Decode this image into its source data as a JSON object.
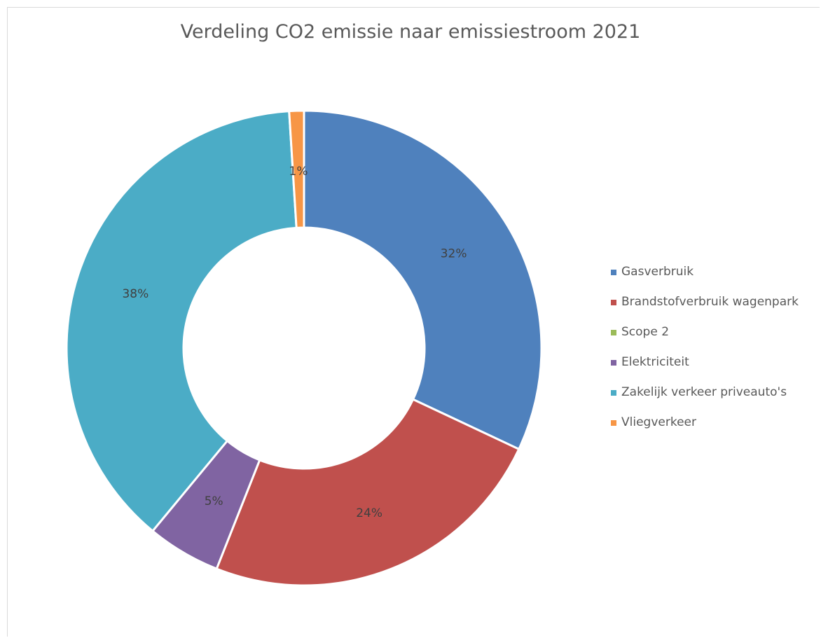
{
  "chart_data": {
    "type": "pie",
    "variant": "donut",
    "title": "Verdeling CO2 emissie naar emissiestroom 2021",
    "legend_position": "right",
    "series": [
      {
        "name": "Gasverbruik",
        "value": 32,
        "label": "32%",
        "color": "#4F81BD"
      },
      {
        "name": "Brandstofverbruik wagenpark",
        "value": 24,
        "label": "24%",
        "color": "#C0504D"
      },
      {
        "name": "Scope 2",
        "value": 0,
        "label": "",
        "color": "#9BBB59"
      },
      {
        "name": "Elektriciteit",
        "value": 5,
        "label": "5%",
        "color": "#8064A2"
      },
      {
        "name": "Zakelijk verkeer priveauto's",
        "value": 38,
        "label": "38%",
        "color": "#4BACC6"
      },
      {
        "name": "Vliegverkeer",
        "value": 1,
        "label": "1%",
        "color": "#F79646"
      }
    ]
  }
}
